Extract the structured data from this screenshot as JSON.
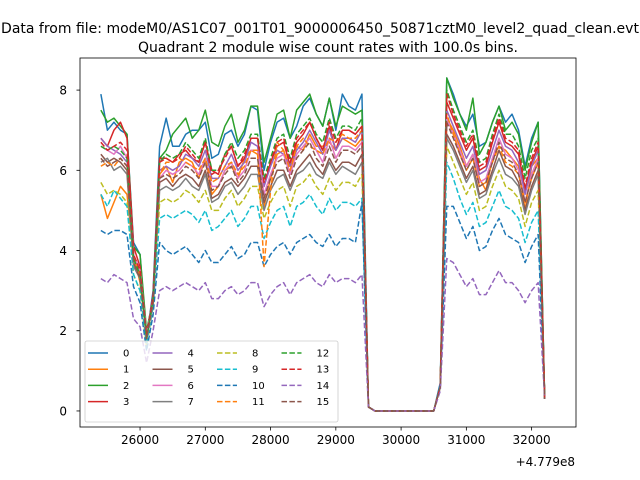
{
  "chart_data": {
    "type": "line",
    "suptitle": "Data from file: modeM0/AS1C07_001T01_9000006450_50871cztM0_level2_quad_clean.evt",
    "title": "Quadrant 2 module wise count rates with 100.0s bins.",
    "xlabel": "",
    "ylabel": "",
    "x_offset_label": "+4.779e8",
    "xlim": [
      25080,
      32680
    ],
    "ylim": [
      -0.4,
      8.8
    ],
    "x_ticks": [
      26000,
      27000,
      28000,
      29000,
      30000,
      31000,
      32000
    ],
    "x_tick_labels": [
      "26000",
      "27000",
      "28000",
      "29000",
      "30000",
      "31000",
      "32000"
    ],
    "y_ticks": [
      0,
      2,
      4,
      6,
      8
    ],
    "y_tick_labels": [
      "0",
      "2",
      "4",
      "6",
      "8"
    ],
    "grid": false,
    "legend_position": "lower-left",
    "legend_columns": 4,
    "x_start": 25400,
    "x_step": 100,
    "series": [
      {
        "name": "0",
        "color": "#1f77b4",
        "dash": "solid",
        "values": [
          7.9,
          7.0,
          7.2,
          7.0,
          6.9,
          4.2,
          3.9,
          1.8,
          3.0,
          6.6,
          7.3,
          6.6,
          6.6,
          6.9,
          7.0,
          7.0,
          7.2,
          6.3,
          6.4,
          6.9,
          7.0,
          6.6,
          6.9,
          7.6,
          7.5,
          6.0,
          6.7,
          7.2,
          7.3,
          6.8,
          7.1,
          7.6,
          7.8,
          7.4,
          7.1,
          7.8,
          7.0,
          7.9,
          7.6,
          7.5,
          7.9,
          0.1,
          0.0,
          0,
          0,
          0,
          0,
          0,
          0,
          0,
          0,
          0,
          0.7,
          8.3,
          7.9,
          7.4,
          7.1,
          7.4,
          6.6,
          6.7,
          7.2,
          7.6,
          7.2,
          7.4,
          7.0,
          6.1,
          6.8,
          7.2,
          0.3
        ]
      },
      {
        "name": "1",
        "color": "#ff7f0e",
        "dash": "solid",
        "values": [
          5.4,
          4.8,
          5.2,
          5.6,
          5.4,
          3.9,
          3.2,
          1.9,
          2.7,
          5.9,
          6.1,
          5.7,
          6.2,
          6.3,
          6.2,
          5.8,
          6.3,
          5.4,
          5.6,
          6.0,
          6.1,
          5.8,
          6.3,
          6.5,
          6.4,
          5.1,
          5.8,
          6.4,
          6.5,
          5.9,
          6.6,
          6.5,
          6.9,
          6.6,
          6.6,
          6.7,
          6.5,
          6.8,
          6.7,
          6.6,
          6.8,
          0.1,
          0.0,
          0,
          0,
          0,
          0,
          0,
          0,
          0,
          0,
          0,
          0.6,
          7.3,
          7.0,
          6.6,
          6.1,
          6.4,
          5.8,
          5.5,
          6.3,
          6.6,
          6.5,
          6.3,
          6.1,
          5.0,
          6.1,
          6.3,
          0.3
        ]
      },
      {
        "name": "2",
        "color": "#2ca02c",
        "dash": "solid",
        "values": [
          7.5,
          7.2,
          7.3,
          7.1,
          6.9,
          4.1,
          3.9,
          2.0,
          2.8,
          6.3,
          6.5,
          6.9,
          7.1,
          7.3,
          6.8,
          7.0,
          7.5,
          6.7,
          6.6,
          7.1,
          7.4,
          6.7,
          7.0,
          7.6,
          7.6,
          6.2,
          6.8,
          7.4,
          7.5,
          6.8,
          7.5,
          7.7,
          7.9,
          7.4,
          7.1,
          7.8,
          7.1,
          7.6,
          7.5,
          7.4,
          7.5,
          0.1,
          0.0,
          0,
          0,
          0,
          0,
          0,
          0,
          0,
          0,
          0,
          0.6,
          8.3,
          7.8,
          7.4,
          7.0,
          7.8,
          6.4,
          6.7,
          7.2,
          7.6,
          7.0,
          7.2,
          6.9,
          6.0,
          6.7,
          7.2,
          0.3
        ]
      },
      {
        "name": "3",
        "color": "#d62728",
        "dash": "solid",
        "values": [
          6.8,
          6.6,
          7.0,
          7.2,
          6.8,
          4.1,
          3.6,
          1.8,
          2.9,
          6.3,
          6.3,
          6.2,
          6.4,
          6.5,
          6.3,
          6.2,
          6.7,
          6.0,
          5.9,
          6.4,
          6.6,
          6.1,
          6.3,
          6.8,
          6.8,
          5.6,
          6.2,
          6.6,
          6.7,
          6.1,
          6.7,
          6.9,
          7.2,
          6.8,
          6.5,
          7.1,
          6.5,
          7.0,
          7.0,
          6.9,
          7.1,
          0.1,
          0.0,
          0,
          0,
          0,
          0,
          0,
          0,
          0,
          0,
          0,
          0.6,
          7.7,
          7.3,
          6.9,
          6.5,
          6.8,
          6.0,
          6.1,
          6.7,
          7.2,
          6.7,
          6.6,
          6.4,
          5.5,
          6.2,
          6.6,
          0.3
        ]
      },
      {
        "name": "4",
        "color": "#9467bd",
        "dash": "solid",
        "values": [
          6.8,
          6.6,
          6.5,
          6.4,
          6.2,
          3.9,
          3.5,
          1.9,
          2.8,
          6.0,
          6.1,
          6.0,
          6.1,
          6.4,
          6.3,
          6.1,
          6.5,
          5.8,
          5.8,
          6.1,
          6.4,
          6.0,
          6.2,
          6.7,
          6.6,
          5.6,
          6.1,
          6.5,
          6.4,
          6.1,
          6.5,
          6.7,
          7.0,
          6.7,
          6.4,
          7.0,
          6.5,
          6.8,
          6.8,
          6.7,
          7.0,
          0.1,
          0.0,
          0,
          0,
          0,
          0,
          0,
          0,
          0,
          0,
          0,
          0.6,
          7.5,
          7.1,
          6.7,
          6.3,
          6.6,
          5.9,
          6.0,
          6.5,
          7.0,
          6.6,
          6.5,
          6.2,
          5.4,
          6.1,
          6.5,
          0.3
        ]
      },
      {
        "name": "5",
        "color": "#8c564b",
        "dash": "solid",
        "values": [
          6.4,
          6.2,
          6.3,
          6.2,
          6.0,
          3.7,
          3.3,
          1.8,
          2.7,
          5.7,
          5.8,
          5.6,
          5.8,
          5.9,
          5.8,
          5.6,
          6.0,
          5.3,
          5.4,
          5.7,
          5.8,
          5.6,
          5.8,
          6.1,
          6.1,
          5.2,
          5.6,
          6.0,
          6.0,
          5.6,
          6.0,
          6.2,
          6.4,
          6.1,
          5.9,
          6.3,
          6.0,
          6.2,
          6.2,
          6.1,
          6.4,
          0.1,
          0.0,
          0,
          0,
          0,
          0,
          0,
          0,
          0,
          0,
          0,
          0.6,
          6.9,
          6.6,
          6.2,
          5.8,
          6.1,
          5.4,
          5.5,
          6.0,
          6.5,
          6.1,
          6.0,
          5.7,
          5.0,
          5.6,
          6.0,
          0.3
        ]
      },
      {
        "name": "6",
        "color": "#e377c2",
        "dash": "solid",
        "values": [
          6.6,
          6.5,
          6.4,
          6.6,
          6.3,
          3.9,
          3.5,
          1.9,
          2.8,
          5.8,
          6.0,
          5.9,
          6.0,
          6.2,
          6.1,
          5.9,
          6.3,
          5.6,
          5.6,
          6.0,
          6.2,
          5.8,
          6.0,
          6.5,
          6.5,
          5.4,
          5.9,
          6.3,
          6.4,
          5.9,
          6.4,
          6.6,
          6.8,
          6.5,
          6.2,
          6.8,
          6.3,
          6.6,
          6.6,
          6.5,
          6.7,
          0.1,
          0.0,
          0,
          0,
          0,
          0,
          0,
          0,
          0,
          0,
          0,
          0.6,
          7.3,
          6.9,
          6.5,
          6.1,
          6.4,
          5.7,
          5.8,
          6.3,
          6.8,
          6.4,
          6.3,
          6.0,
          5.2,
          5.9,
          6.3,
          0.3
        ]
      },
      {
        "name": "7",
        "color": "#7f7f7f",
        "dash": "solid",
        "values": [
          6.2,
          6.3,
          6.0,
          6.1,
          5.9,
          3.6,
          3.3,
          1.8,
          2.7,
          5.5,
          5.6,
          5.5,
          5.6,
          5.8,
          5.6,
          5.5,
          5.9,
          5.2,
          5.3,
          5.6,
          5.7,
          5.4,
          5.6,
          5.9,
          5.9,
          5.0,
          5.5,
          5.8,
          5.9,
          5.5,
          5.9,
          6.0,
          6.2,
          5.9,
          5.8,
          6.2,
          5.9,
          6.1,
          6.0,
          5.9,
          6.2,
          0.1,
          0.0,
          0,
          0,
          0,
          0,
          0,
          0,
          0,
          0,
          0,
          0.6,
          6.8,
          6.5,
          6.1,
          5.7,
          6.0,
          5.3,
          5.4,
          5.9,
          6.3,
          5.9,
          5.8,
          5.6,
          4.9,
          5.5,
          5.9,
          0.3
        ]
      },
      {
        "name": "8",
        "color": "#bcbd22",
        "dash": "dashed",
        "values": [
          5.7,
          5.4,
          5.5,
          5.4,
          5.2,
          3.4,
          3.0,
          1.6,
          2.6,
          5.2,
          5.3,
          5.2,
          5.3,
          5.5,
          5.4,
          5.2,
          5.5,
          5.0,
          5.0,
          5.3,
          5.5,
          5.1,
          5.3,
          5.6,
          5.6,
          4.8,
          5.2,
          5.5,
          5.6,
          5.1,
          5.6,
          5.7,
          5.9,
          5.6,
          5.4,
          5.8,
          5.5,
          5.7,
          5.7,
          5.6,
          5.9,
          0.1,
          0.0,
          0,
          0,
          0,
          0,
          0,
          0,
          0,
          0,
          0,
          0.6,
          6.6,
          6.2,
          5.8,
          5.4,
          5.7,
          5.0,
          5.1,
          5.6,
          6.0,
          5.6,
          5.5,
          5.3,
          4.6,
          5.2,
          5.5,
          0.3
        ]
      },
      {
        "name": "9",
        "color": "#17becf",
        "dash": "dashed",
        "values": [
          5.4,
          5.1,
          5.5,
          5.3,
          5.1,
          3.4,
          3.0,
          1.7,
          2.6,
          4.8,
          4.9,
          4.8,
          4.9,
          5.0,
          4.9,
          4.7,
          5.0,
          4.5,
          4.6,
          4.8,
          5.0,
          4.6,
          4.8,
          5.1,
          5.1,
          4.3,
          4.7,
          5.0,
          5.1,
          4.6,
          5.1,
          5.2,
          5.4,
          5.1,
          4.9,
          5.3,
          5.0,
          5.2,
          5.2,
          5.1,
          5.3,
          0.1,
          0.0,
          0,
          0,
          0,
          0,
          0,
          0,
          0,
          0,
          0,
          0.6,
          6.2,
          5.8,
          5.3,
          4.9,
          5.2,
          4.6,
          4.7,
          5.1,
          5.5,
          5.1,
          5.0,
          4.8,
          4.2,
          4.7,
          5.0,
          0.3
        ]
      },
      {
        "name": "10",
        "color": "#1f77b4",
        "dash": "dashed",
        "values": [
          4.5,
          4.4,
          4.5,
          4.5,
          4.4,
          3.1,
          2.7,
          1.5,
          2.4,
          4.2,
          4.0,
          3.9,
          4.0,
          4.1,
          3.9,
          3.7,
          4.0,
          3.7,
          3.7,
          3.9,
          4.1,
          3.8,
          3.9,
          4.2,
          4.2,
          3.6,
          3.9,
          4.1,
          4.2,
          3.9,
          4.2,
          4.3,
          4.4,
          4.2,
          4.1,
          4.4,
          4.1,
          4.3,
          4.3,
          4.2,
          5.2,
          0.1,
          0.0,
          0,
          0,
          0,
          0,
          0,
          0,
          0,
          0,
          0,
          0.6,
          5.1,
          5.1,
          4.7,
          4.3,
          4.6,
          4.0,
          4.1,
          4.5,
          4.8,
          4.4,
          4.3,
          4.2,
          3.7,
          4.1,
          4.4,
          0.3
        ]
      },
      {
        "name": "11",
        "color": "#ff7f0e",
        "dash": "dashed",
        "values": [
          6.1,
          6.2,
          6.1,
          6.3,
          6.1,
          3.8,
          3.4,
          1.8,
          2.7,
          5.9,
          6.2,
          6.2,
          6.3,
          6.2,
          6.1,
          6.0,
          6.3,
          5.7,
          5.8,
          6.1,
          6.2,
          5.9,
          6.1,
          6.5,
          6.5,
          3.6,
          5.5,
          6.7,
          6.5,
          6.0,
          6.6,
          6.8,
          6.6,
          6.5,
          6.4,
          6.8,
          6.7,
          6.9,
          6.8,
          6.8,
          7.0,
          0.1,
          0.0,
          0,
          0,
          0,
          0,
          0,
          0,
          0,
          0,
          0,
          0.6,
          7.4,
          6.9,
          6.4,
          6.0,
          6.3,
          5.6,
          5.7,
          6.2,
          6.6,
          6.2,
          6.1,
          5.9,
          5.2,
          5.8,
          6.2,
          0.3
        ]
      },
      {
        "name": "12",
        "color": "#2ca02c",
        "dash": "dashed",
        "values": [
          6.6,
          6.5,
          6.6,
          6.5,
          6.3,
          3.8,
          3.4,
          1.8,
          2.8,
          6.2,
          6.4,
          6.3,
          6.4,
          6.7,
          6.5,
          6.3,
          6.8,
          6.0,
          6.0,
          6.4,
          6.7,
          6.3,
          6.5,
          6.9,
          6.9,
          5.8,
          6.3,
          6.8,
          6.9,
          6.3,
          6.9,
          7.1,
          7.3,
          6.9,
          6.7,
          7.3,
          6.8,
          7.1,
          7.1,
          7.0,
          7.3,
          0.1,
          0.0,
          0,
          0,
          0,
          0,
          0,
          0,
          0,
          0,
          0,
          0.6,
          8.0,
          7.5,
          7.1,
          6.7,
          7.0,
          6.2,
          6.3,
          6.9,
          7.4,
          6.9,
          6.9,
          6.6,
          5.8,
          6.5,
          6.8,
          0.3
        ]
      },
      {
        "name": "13",
        "color": "#d62728",
        "dash": "dashed",
        "values": [
          6.7,
          6.5,
          6.6,
          6.7,
          6.5,
          3.9,
          3.5,
          1.9,
          2.8,
          6.2,
          6.3,
          6.2,
          6.3,
          6.6,
          6.4,
          6.2,
          6.7,
          5.9,
          6.0,
          6.3,
          6.6,
          6.1,
          6.4,
          6.8,
          6.8,
          5.7,
          6.2,
          6.7,
          6.8,
          6.2,
          6.8,
          7.0,
          7.2,
          6.8,
          6.5,
          7.2,
          6.7,
          7.0,
          7.0,
          6.9,
          7.1,
          0.1,
          0.0,
          0,
          0,
          0,
          0,
          0,
          0,
          0,
          0,
          0,
          0.6,
          7.9,
          7.4,
          7.0,
          6.6,
          6.9,
          6.1,
          6.2,
          6.8,
          7.3,
          6.8,
          6.7,
          6.5,
          5.6,
          6.3,
          6.7,
          0.3
        ]
      },
      {
        "name": "14",
        "color": "#9467bd",
        "dash": "dashed",
        "values": [
          3.3,
          3.2,
          3.4,
          3.3,
          3.2,
          2.3,
          2.1,
          1.2,
          2.0,
          3.0,
          3.1,
          3.0,
          3.1,
          3.2,
          3.1,
          3.0,
          3.2,
          2.8,
          2.8,
          3.0,
          3.1,
          2.9,
          3.0,
          3.2,
          3.2,
          2.6,
          2.9,
          3.1,
          3.2,
          2.9,
          3.2,
          3.3,
          3.4,
          3.2,
          3.1,
          3.4,
          3.2,
          3.3,
          3.3,
          3.2,
          3.4,
          0.1,
          0.0,
          0,
          0,
          0,
          0,
          0,
          0,
          0,
          0,
          0,
          0.5,
          3.8,
          3.7,
          3.4,
          3.1,
          3.3,
          2.9,
          2.9,
          3.2,
          3.5,
          3.2,
          3.2,
          3.0,
          2.7,
          3.0,
          3.2,
          0.3
        ]
      },
      {
        "name": "15",
        "color": "#8c564b",
        "dash": "dashed",
        "values": [
          6.3,
          6.1,
          6.2,
          6.3,
          6.1,
          3.7,
          3.3,
          1.8,
          2.7,
          5.8,
          5.9,
          5.8,
          5.9,
          6.1,
          6.0,
          5.8,
          6.2,
          5.5,
          5.6,
          5.9,
          6.1,
          5.7,
          5.9,
          6.3,
          6.3,
          5.3,
          5.8,
          6.2,
          6.3,
          5.8,
          6.3,
          6.5,
          6.7,
          6.3,
          6.1,
          6.6,
          6.2,
          6.5,
          6.5,
          6.4,
          6.6,
          0.1,
          0.0,
          0,
          0,
          0,
          0,
          0,
          0,
          0,
          0,
          0,
          0.6,
          7.2,
          6.8,
          6.4,
          6.0,
          6.3,
          5.6,
          5.7,
          6.2,
          6.7,
          6.3,
          6.2,
          5.9,
          5.2,
          5.8,
          6.2,
          0.3
        ]
      }
    ]
  }
}
